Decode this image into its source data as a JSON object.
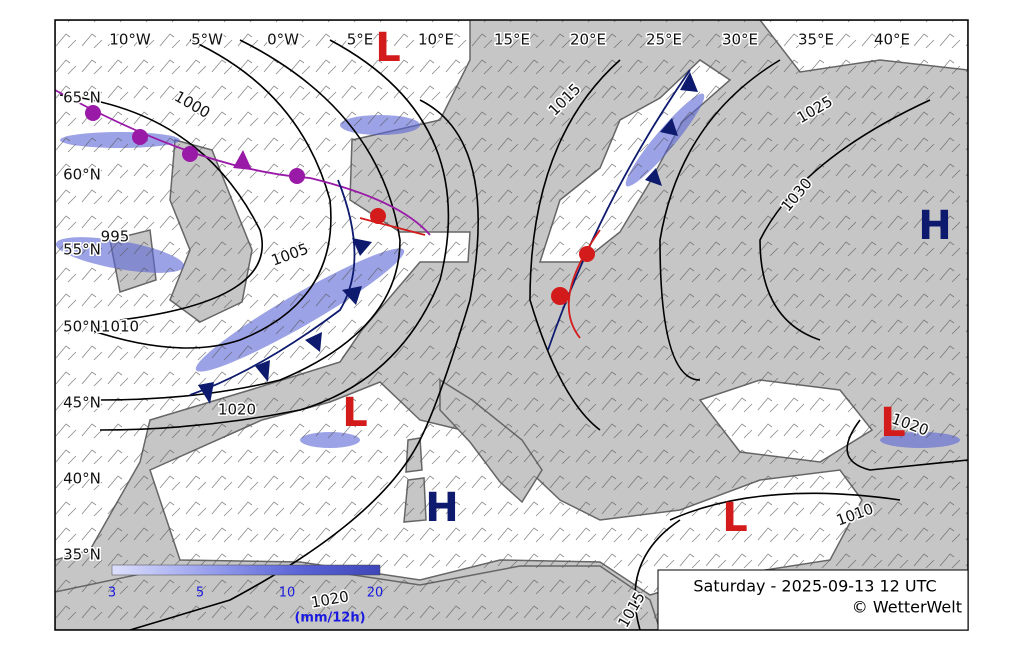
{
  "map": {
    "lon_labels": [
      "10°W",
      "5°W",
      "0°W",
      "5°E",
      "10°E",
      "15°E",
      "20°E",
      "25°E",
      "30°E",
      "35°E",
      "40°E"
    ],
    "lat_labels": [
      "65°N",
      "60°N",
      "55°N",
      "50°N",
      "45°N",
      "40°N",
      "35°N"
    ],
    "isobar_labels": [
      1000,
      1015,
      1025,
      1030,
      995,
      1005,
      1010,
      1020,
      1020,
      1020,
      1010,
      1015
    ],
    "pressure_centers": [
      {
        "label": "L",
        "color": "#d41b1b"
      },
      {
        "label": "L",
        "color": "#d41b1b"
      },
      {
        "label": "H",
        "color": "#0d1a6e"
      },
      {
        "label": "H",
        "color": "#0d1a6e"
      },
      {
        "label": "L",
        "color": "#d41b1b"
      },
      {
        "label": "L",
        "color": "#d41b1b"
      }
    ],
    "legend": {
      "ticks": [
        3,
        5,
        10,
        20
      ],
      "unit": "(mm/12h)"
    },
    "info": {
      "valid": "Saturday - 2025-09-13 12 UTC",
      "credit": "© WetterWelt"
    }
  }
}
